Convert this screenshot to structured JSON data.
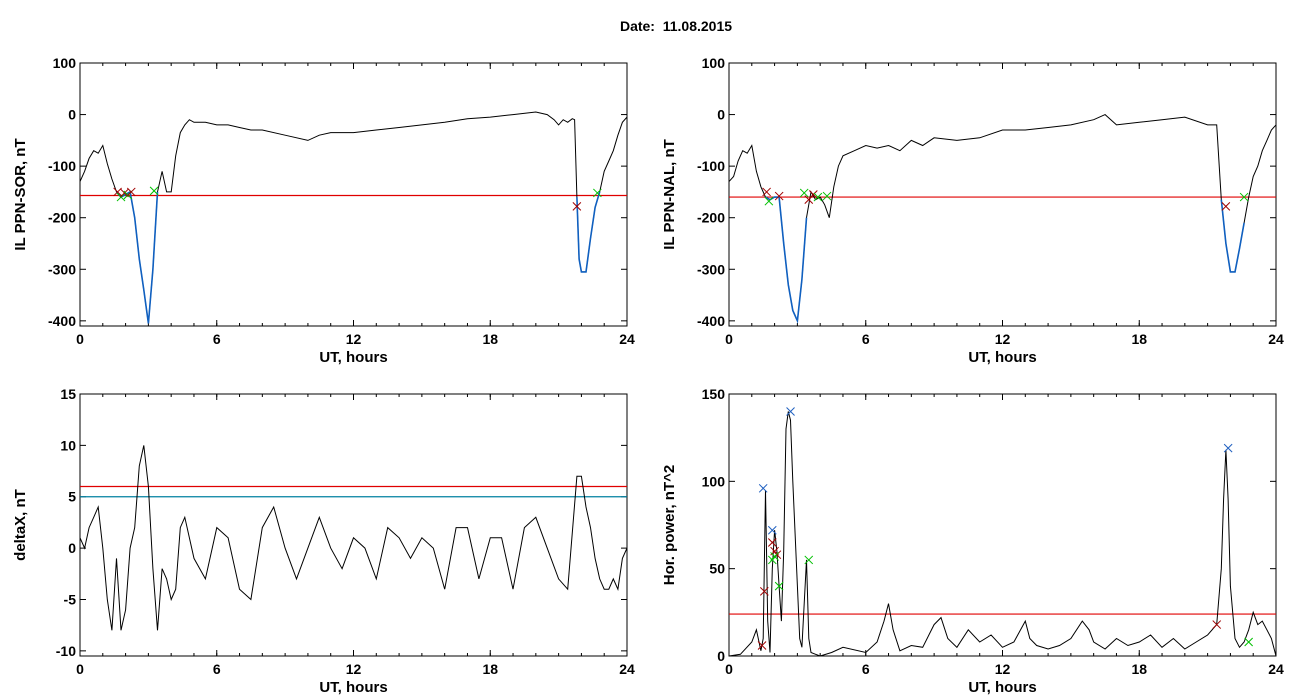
{
  "title": "Date:  11.08.2015",
  "colors": {
    "trace": "#000000",
    "threshold": "#e00000",
    "threshold2": "#0080a0",
    "fit": "#1060c0",
    "marker_red": "#a00000",
    "marker_green": "#00c000",
    "marker_blue": "#2060c0"
  },
  "chart_data": [
    {
      "type": "line",
      "xlabel": "UT, hours",
      "ylabel": "IL PPN-SOR, nT",
      "xlim": [
        0,
        24
      ],
      "ylim": [
        -410,
        100
      ],
      "xticks": [
        "0",
        "6",
        "12",
        "18",
        "24"
      ],
      "yticks": [
        "100",
        "0",
        "-100",
        "-200",
        "-300",
        "-400"
      ],
      "ytick_values": [
        100,
        0,
        -100,
        -200,
        -300,
        -400
      ],
      "thresholds": [
        {
          "y": -157,
          "color": "red"
        }
      ],
      "series": [
        {
          "color": "black",
          "x": [
            0,
            0.2,
            0.4,
            0.6,
            0.8,
            1.0,
            1.2,
            1.4,
            1.6,
            1.8,
            2.0,
            2.2,
            2.4,
            2.6,
            2.8,
            3.0,
            3.2,
            3.4,
            3.6,
            3.8,
            4.0,
            4.2,
            4.4,
            4.6,
            4.8,
            5.0,
            5.5,
            6.0,
            6.5,
            7.0,
            7.5,
            8.0,
            9.0,
            10.0,
            10.5,
            11.0,
            12.0,
            13.0,
            14.0,
            15.0,
            16.0,
            17.0,
            18.0,
            19.0,
            20.0,
            20.5,
            20.8,
            21.0,
            21.2,
            21.4,
            21.6,
            21.7,
            21.8,
            21.9,
            22.0,
            22.2,
            22.4,
            22.6,
            22.8,
            23.0,
            23.2,
            23.4,
            23.6,
            23.8,
            24.0
          ],
          "y": [
            -130,
            -110,
            -85,
            -70,
            -75,
            -60,
            -95,
            -125,
            -150,
            -160,
            -155,
            -150,
            -200,
            -280,
            -340,
            -405,
            -300,
            -150,
            -110,
            -150,
            -150,
            -80,
            -35,
            -20,
            -10,
            -15,
            -15,
            -20,
            -20,
            -25,
            -30,
            -30,
            -40,
            -50,
            -40,
            -35,
            -35,
            -30,
            -25,
            -20,
            -15,
            -8,
            -5,
            0,
            5,
            0,
            -10,
            -20,
            -10,
            -15,
            -8,
            -10,
            -160,
            -280,
            -305,
            -305,
            -240,
            -180,
            -150,
            -110,
            -90,
            -70,
            -40,
            -15,
            -5
          ]
        },
        {
          "color": "blue",
          "x": [
            1.6,
            1.8,
            2.0,
            2.2,
            2.4,
            2.6,
            2.8,
            3.0,
            3.2,
            3.4
          ],
          "y": [
            -150,
            -160,
            -155,
            -150,
            -200,
            -280,
            -340,
            -405,
            -300,
            -150
          ]
        },
        {
          "color": "blue",
          "x": [
            21.8,
            21.9,
            22.0,
            22.2,
            22.4,
            22.6,
            22.8
          ],
          "y": [
            -160,
            -280,
            -305,
            -305,
            -240,
            -180,
            -150
          ]
        }
      ],
      "markers": [
        {
          "x": 1.65,
          "y": -150,
          "color": "red"
        },
        {
          "x": 1.8,
          "y": -160,
          "color": "green"
        },
        {
          "x": 1.95,
          "y": -152,
          "color": "red"
        },
        {
          "x": 2.1,
          "y": -156,
          "color": "green"
        },
        {
          "x": 2.25,
          "y": -150,
          "color": "red"
        },
        {
          "x": 3.25,
          "y": -148,
          "color": "green"
        },
        {
          "x": 21.8,
          "y": -178,
          "color": "red"
        },
        {
          "x": 22.7,
          "y": -152,
          "color": "green"
        }
      ]
    },
    {
      "type": "line",
      "xlabel": "UT, hours",
      "ylabel": "IL PPN-NAL, nT",
      "xlim": [
        0,
        24
      ],
      "ylim": [
        -410,
        100
      ],
      "xticks": [
        "0",
        "6",
        "12",
        "18",
        "24"
      ],
      "yticks": [
        "100",
        "0",
        "-100",
        "-200",
        "-300",
        "-400"
      ],
      "ytick_values": [
        100,
        0,
        -100,
        -200,
        -300,
        -400
      ],
      "thresholds": [
        {
          "y": -160,
          "color": "red"
        }
      ],
      "series": [
        {
          "color": "black",
          "x": [
            0,
            0.2,
            0.4,
            0.6,
            0.8,
            1.0,
            1.2,
            1.4,
            1.6,
            1.8,
            2.0,
            2.2,
            2.4,
            2.6,
            2.8,
            3.0,
            3.2,
            3.4,
            3.6,
            3.8,
            4.0,
            4.2,
            4.4,
            4.6,
            4.8,
            5.0,
            5.5,
            6.0,
            6.5,
            7.0,
            7.5,
            8.0,
            8.5,
            9.0,
            10.0,
            11.0,
            12.0,
            13.0,
            14.0,
            15.0,
            16.0,
            16.5,
            17.0,
            18.0,
            19.0,
            20.0,
            21.0,
            21.4,
            21.6,
            21.8,
            22.0,
            22.2,
            22.4,
            22.6,
            22.8,
            23.0,
            23.2,
            23.4,
            23.6,
            23.8,
            24.0
          ],
          "y": [
            -130,
            -120,
            -90,
            -70,
            -75,
            -60,
            -110,
            -140,
            -160,
            -165,
            -160,
            -160,
            -250,
            -330,
            -380,
            -400,
            -320,
            -200,
            -150,
            -165,
            -160,
            -175,
            -200,
            -140,
            -100,
            -80,
            -70,
            -60,
            -65,
            -60,
            -70,
            -50,
            -60,
            -45,
            -50,
            -45,
            -30,
            -30,
            -25,
            -20,
            -10,
            0,
            -20,
            -15,
            -10,
            -5,
            -20,
            -20,
            -165,
            -250,
            -305,
            -305,
            -260,
            -210,
            -160,
            -120,
            -100,
            -70,
            -50,
            -30,
            -20
          ]
        },
        {
          "color": "blue",
          "x": [
            1.6,
            1.8,
            2.0,
            2.2,
            2.4,
            2.6,
            2.8,
            3.0,
            3.2,
            3.4
          ],
          "y": [
            -160,
            -165,
            -160,
            -160,
            -250,
            -330,
            -380,
            -400,
            -320,
            -200
          ]
        },
        {
          "color": "blue",
          "x": [
            21.6,
            21.8,
            22.0,
            22.2,
            22.4,
            22.6
          ],
          "y": [
            -165,
            -250,
            -305,
            -305,
            -260,
            -210
          ]
        }
      ],
      "markers": [
        {
          "x": 1.65,
          "y": -150,
          "color": "red"
        },
        {
          "x": 1.75,
          "y": -168,
          "color": "green"
        },
        {
          "x": 2.2,
          "y": -158,
          "color": "red"
        },
        {
          "x": 3.3,
          "y": -152,
          "color": "green"
        },
        {
          "x": 3.5,
          "y": -165,
          "color": "red"
        },
        {
          "x": 3.7,
          "y": -155,
          "color": "red"
        },
        {
          "x": 3.9,
          "y": -160,
          "color": "green"
        },
        {
          "x": 4.3,
          "y": -158,
          "color": "green"
        },
        {
          "x": 21.8,
          "y": -178,
          "color": "red"
        },
        {
          "x": 22.6,
          "y": -160,
          "color": "green"
        }
      ]
    },
    {
      "type": "line",
      "xlabel": "UT, hours",
      "ylabel": "deltaX, nT",
      "xlim": [
        0,
        24
      ],
      "ylim": [
        -10.5,
        15
      ],
      "xticks": [
        "0",
        "6",
        "12",
        "18",
        "24"
      ],
      "yticks": [
        "15",
        "10",
        "5",
        "0",
        "-5",
        "-10"
      ],
      "ytick_values": [
        15,
        10,
        5,
        0,
        -5,
        -10
      ],
      "thresholds": [
        {
          "y": 6,
          "color": "red"
        },
        {
          "y": 5,
          "color": "teal"
        }
      ],
      "series": [
        {
          "color": "black",
          "x": [
            0,
            0.2,
            0.4,
            0.6,
            0.8,
            1.0,
            1.2,
            1.4,
            1.6,
            1.8,
            2.0,
            2.2,
            2.4,
            2.6,
            2.8,
            3.0,
            3.2,
            3.4,
            3.6,
            3.8,
            4.0,
            4.2,
            4.4,
            4.6,
            5.0,
            5.5,
            6.0,
            6.5,
            7.0,
            7.5,
            8.0,
            8.5,
            9.0,
            9.5,
            10.0,
            10.5,
            11.0,
            11.5,
            12.0,
            12.5,
            13.0,
            13.5,
            14.0,
            14.5,
            15.0,
            15.5,
            16.0,
            16.5,
            17.0,
            17.5,
            18.0,
            18.5,
            19.0,
            19.5,
            20.0,
            20.5,
            21.0,
            21.4,
            21.8,
            22.0,
            22.2,
            22.4,
            22.6,
            22.8,
            23.0,
            23.2,
            23.4,
            23.6,
            23.8,
            24.0
          ],
          "y": [
            1,
            0,
            2,
            3,
            4,
            0,
            -5,
            -8,
            -1,
            -8,
            -6,
            0,
            2,
            8,
            10,
            6,
            -2,
            -8,
            -2,
            -3,
            -5,
            -4,
            2,
            3,
            -1,
            -3,
            2,
            1,
            -4,
            -5,
            2,
            4,
            0,
            -3,
            0,
            3,
            0,
            -2,
            1,
            0,
            -3,
            2,
            1,
            -1,
            1,
            0,
            -4,
            2,
            2,
            -3,
            1,
            1,
            -4,
            2,
            3,
            0,
            -3,
            -4,
            7,
            7,
            4,
            2,
            -1,
            -3,
            -4,
            -4,
            -3,
            -4,
            -1,
            0
          ]
        }
      ],
      "markers": []
    },
    {
      "type": "line",
      "xlabel": "UT, hours",
      "ylabel": "Hor. power, nT^2",
      "xlim": [
        0,
        24
      ],
      "ylim": [
        0,
        150
      ],
      "xticks": [
        "0",
        "6",
        "12",
        "18",
        "24"
      ],
      "yticks": [
        "150",
        "100",
        "50",
        "0"
      ],
      "ytick_values": [
        150,
        100,
        50,
        0
      ],
      "thresholds": [
        {
          "y": 24,
          "color": "red"
        }
      ],
      "series": [
        {
          "color": "black",
          "x": [
            0,
            0.5,
            1.0,
            1.2,
            1.4,
            1.5,
            1.6,
            1.7,
            1.8,
            1.9,
            2.0,
            2.1,
            2.2,
            2.3,
            2.4,
            2.5,
            2.6,
            2.7,
            2.8,
            2.9,
            3.0,
            3.1,
            3.2,
            3.3,
            3.4,
            3.5,
            3.6,
            3.8,
            4.0,
            4.5,
            5.0,
            6.0,
            6.5,
            6.8,
            7.0,
            7.2,
            7.5,
            8.0,
            8.5,
            9.0,
            9.3,
            9.6,
            10.0,
            10.5,
            11.0,
            11.5,
            12.0,
            12.5,
            13.0,
            13.2,
            13.5,
            14.0,
            14.5,
            15.0,
            15.5,
            15.8,
            16.0,
            16.5,
            17.0,
            17.5,
            18.0,
            18.5,
            19.0,
            19.5,
            20.0,
            20.5,
            21.0,
            21.4,
            21.6,
            21.7,
            21.8,
            21.9,
            22.0,
            22.2,
            22.4,
            22.6,
            22.8,
            23.0,
            23.2,
            23.4,
            23.6,
            23.8,
            24.0
          ],
          "y": [
            0,
            1,
            8,
            15,
            3,
            10,
            95,
            20,
            2,
            50,
            72,
            60,
            40,
            20,
            60,
            130,
            140,
            135,
            100,
            70,
            40,
            10,
            5,
            30,
            55,
            10,
            2,
            1,
            0,
            2,
            5,
            2,
            8,
            20,
            30,
            15,
            3,
            6,
            5,
            18,
            22,
            10,
            5,
            15,
            8,
            12,
            5,
            8,
            20,
            10,
            6,
            4,
            6,
            10,
            20,
            15,
            8,
            4,
            10,
            6,
            8,
            12,
            5,
            10,
            4,
            8,
            12,
            18,
            50,
            90,
            118,
            90,
            40,
            10,
            5,
            8,
            15,
            25,
            18,
            20,
            15,
            10,
            0
          ]
        }
      ],
      "markers": [
        {
          "x": 1.5,
          "y": 96,
          "color": "blue"
        },
        {
          "x": 1.9,
          "y": 72,
          "color": "blue"
        },
        {
          "x": 2.7,
          "y": 140,
          "color": "blue"
        },
        {
          "x": 21.9,
          "y": 119,
          "color": "blue"
        },
        {
          "x": 1.45,
          "y": 6,
          "color": "red"
        },
        {
          "x": 1.55,
          "y": 37,
          "color": "red"
        },
        {
          "x": 1.9,
          "y": 65,
          "color": "red"
        },
        {
          "x": 2.0,
          "y": 60,
          "color": "red"
        },
        {
          "x": 2.1,
          "y": 58,
          "color": "red"
        },
        {
          "x": 1.9,
          "y": 55,
          "color": "green"
        },
        {
          "x": 2.0,
          "y": 57,
          "color": "green"
        },
        {
          "x": 2.2,
          "y": 40,
          "color": "green"
        },
        {
          "x": 3.5,
          "y": 55,
          "color": "green"
        },
        {
          "x": 21.4,
          "y": 18,
          "color": "red"
        },
        {
          "x": 22.8,
          "y": 8,
          "color": "green"
        }
      ]
    }
  ]
}
